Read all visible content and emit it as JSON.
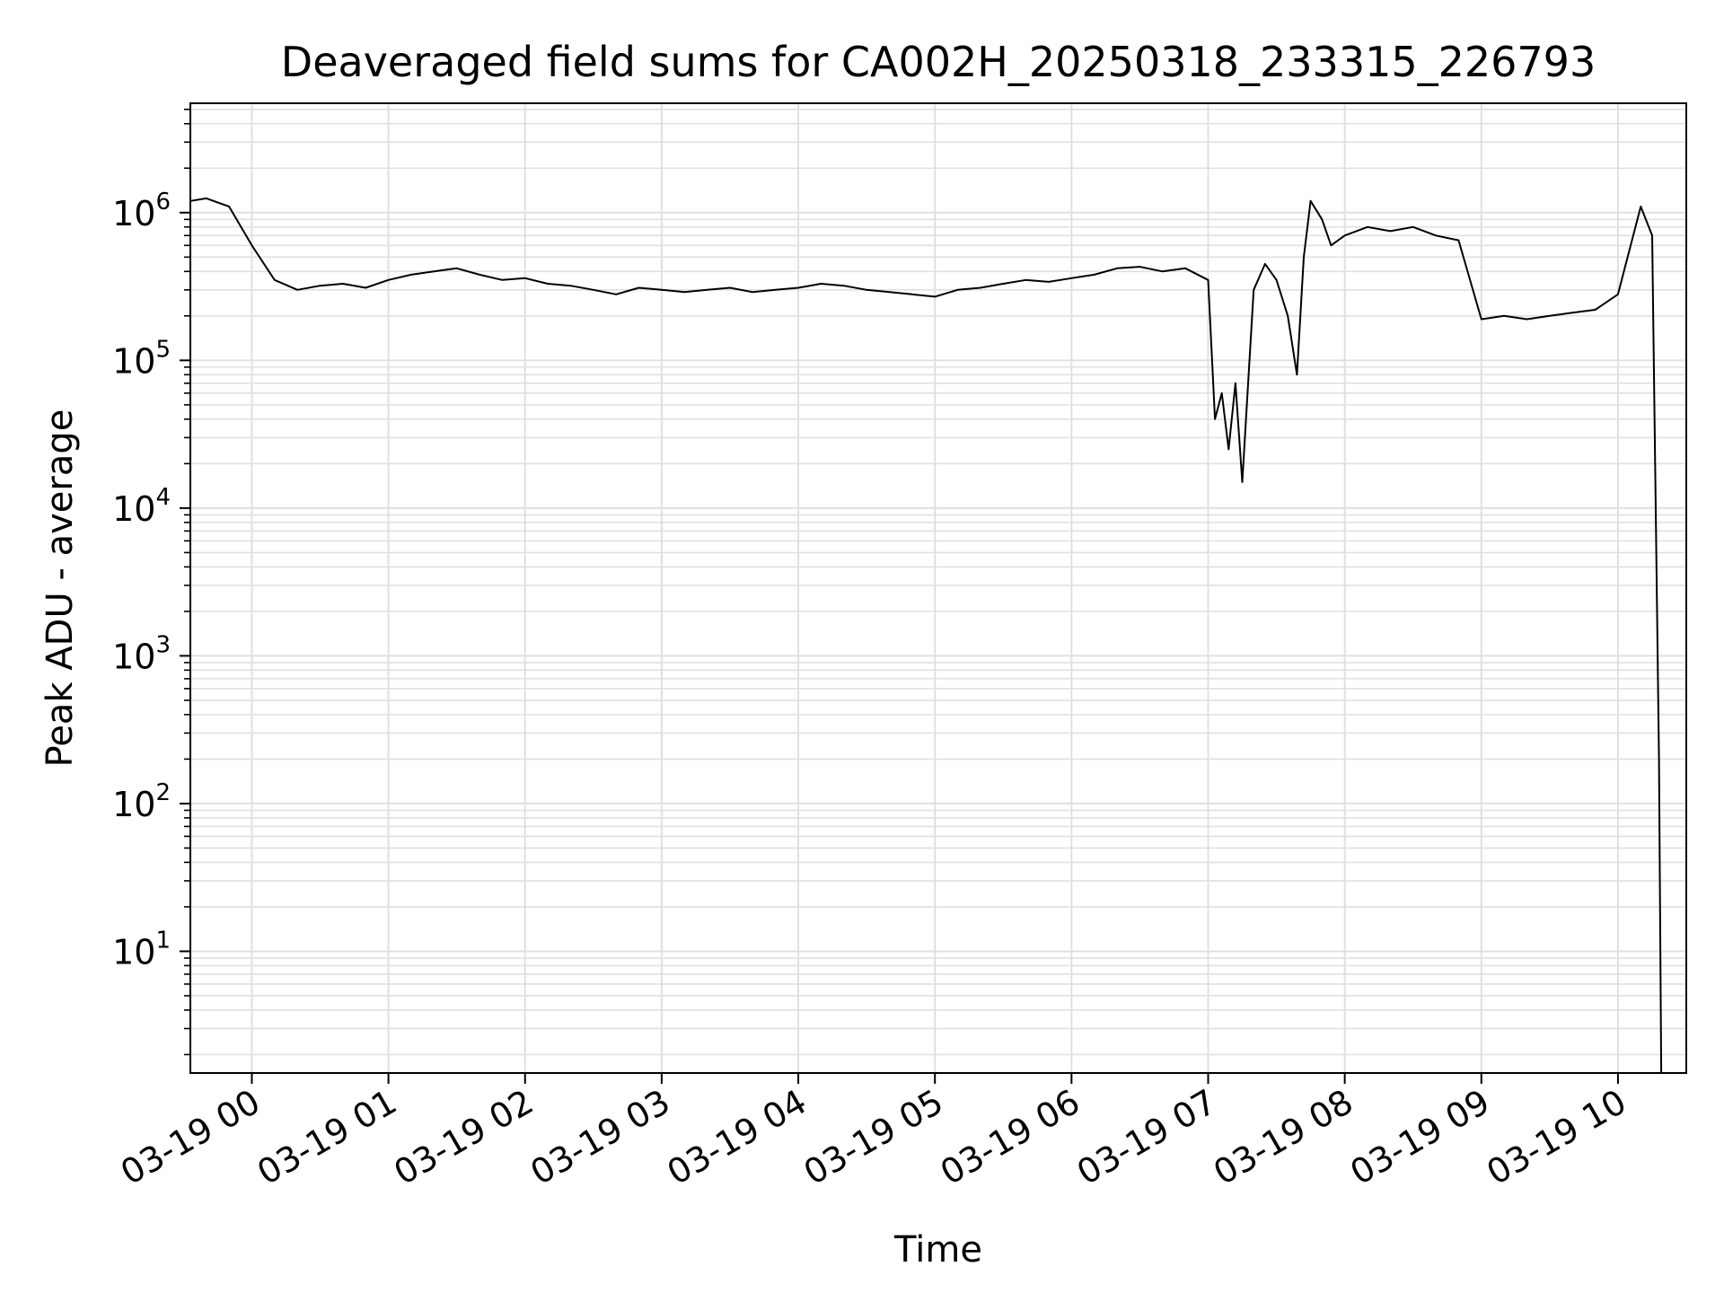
{
  "chart_data": {
    "type": "line",
    "title": "Deaveraged field sums for CA002H_20250318_233315_226793",
    "xlabel": "Time",
    "ylabel": "Peak ADU - average",
    "yscale": "log",
    "ylim": [
      1.5,
      5500000
    ],
    "xlim": [
      "2025-03-18 23:33",
      "2025-03-19 10:30"
    ],
    "grid": true,
    "color": "#000000",
    "x_ticks": [
      {
        "t": "2025-03-19 00:00",
        "label": "03-19 00"
      },
      {
        "t": "2025-03-19 01:00",
        "label": "03-19 01"
      },
      {
        "t": "2025-03-19 02:00",
        "label": "03-19 02"
      },
      {
        "t": "2025-03-19 03:00",
        "label": "03-19 03"
      },
      {
        "t": "2025-03-19 04:00",
        "label": "03-19 04"
      },
      {
        "t": "2025-03-19 05:00",
        "label": "03-19 05"
      },
      {
        "t": "2025-03-19 06:00",
        "label": "03-19 06"
      },
      {
        "t": "2025-03-19 07:00",
        "label": "03-19 07"
      },
      {
        "t": "2025-03-19 08:00",
        "label": "03-19 08"
      },
      {
        "t": "2025-03-19 09:00",
        "label": "03-19 09"
      },
      {
        "t": "2025-03-19 10:00",
        "label": "03-19 10"
      }
    ],
    "y_ticks": [
      {
        "value": 10,
        "base": "10",
        "exp": "1"
      },
      {
        "value": 100,
        "base": "10",
        "exp": "2"
      },
      {
        "value": 1000,
        "base": "10",
        "exp": "3"
      },
      {
        "value": 10000,
        "base": "10",
        "exp": "4"
      },
      {
        "value": 100000,
        "base": "10",
        "exp": "5"
      },
      {
        "value": 1000000,
        "base": "10",
        "exp": "6"
      }
    ],
    "series": [
      {
        "x": [
          "2025-03-18 23:33",
          "2025-03-18 23:40",
          "2025-03-18 23:50",
          "2025-03-19 00:00",
          "2025-03-19 00:10",
          "2025-03-19 00:20",
          "2025-03-19 00:30",
          "2025-03-19 00:40",
          "2025-03-19 00:50",
          "2025-03-19 01:00",
          "2025-03-19 01:10",
          "2025-03-19 01:20",
          "2025-03-19 01:30",
          "2025-03-19 01:40",
          "2025-03-19 01:50",
          "2025-03-19 02:00",
          "2025-03-19 02:10",
          "2025-03-19 02:20",
          "2025-03-19 02:30",
          "2025-03-19 02:40",
          "2025-03-19 02:50",
          "2025-03-19 03:00",
          "2025-03-19 03:10",
          "2025-03-19 03:20",
          "2025-03-19 03:30",
          "2025-03-19 03:40",
          "2025-03-19 03:50",
          "2025-03-19 04:00",
          "2025-03-19 04:10",
          "2025-03-19 04:20",
          "2025-03-19 04:30",
          "2025-03-19 04:40",
          "2025-03-19 04:50",
          "2025-03-19 05:00",
          "2025-03-19 05:10",
          "2025-03-19 05:20",
          "2025-03-19 05:30",
          "2025-03-19 05:40",
          "2025-03-19 05:50",
          "2025-03-19 06:00",
          "2025-03-19 06:10",
          "2025-03-19 06:20",
          "2025-03-19 06:30",
          "2025-03-19 06:40",
          "2025-03-19 06:50",
          "2025-03-19 07:00",
          "2025-03-19 07:03",
          "2025-03-19 07:06",
          "2025-03-19 07:09",
          "2025-03-19 07:12",
          "2025-03-19 07:15",
          "2025-03-19 07:20",
          "2025-03-19 07:25",
          "2025-03-19 07:30",
          "2025-03-19 07:35",
          "2025-03-19 07:39",
          "2025-03-19 07:42",
          "2025-03-19 07:45",
          "2025-03-19 07:50",
          "2025-03-19 07:54",
          "2025-03-19 08:00",
          "2025-03-19 08:10",
          "2025-03-19 08:20",
          "2025-03-19 08:30",
          "2025-03-19 08:40",
          "2025-03-19 08:50",
          "2025-03-19 09:00",
          "2025-03-19 09:10",
          "2025-03-19 09:20",
          "2025-03-19 09:30",
          "2025-03-19 09:40",
          "2025-03-19 09:50",
          "2025-03-19 10:00",
          "2025-03-19 10:10",
          "2025-03-19 10:15",
          "2025-03-19 10:18",
          "2025-03-19 10:19"
        ],
        "y": [
          1200000,
          1250000,
          1100000,
          600000,
          350000,
          300000,
          320000,
          330000,
          310000,
          350000,
          380000,
          400000,
          420000,
          380000,
          350000,
          360000,
          330000,
          320000,
          300000,
          280000,
          310000,
          300000,
          290000,
          300000,
          310000,
          290000,
          300000,
          310000,
          330000,
          320000,
          300000,
          290000,
          280000,
          270000,
          300000,
          310000,
          330000,
          350000,
          340000,
          360000,
          380000,
          420000,
          430000,
          400000,
          420000,
          350000,
          40000,
          60000,
          25000,
          70000,
          15000,
          300000,
          450000,
          350000,
          200000,
          80000,
          500000,
          1200000,
          900000,
          600000,
          700000,
          800000,
          750000,
          800000,
          700000,
          650000,
          190000,
          200000,
          190000,
          200000,
          210000,
          220000,
          280000,
          1100000,
          700000,
          200,
          1.5
        ]
      }
    ]
  }
}
